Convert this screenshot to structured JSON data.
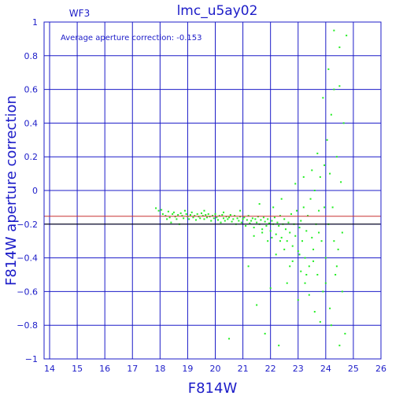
{
  "chart_data": {
    "type": "scatter",
    "title": "lmc_u5ay02",
    "chip_label": "WF3",
    "annotation": "Average aperture correction: -0.153",
    "xlabel": "F814W",
    "ylabel": "F814W aperture correction",
    "xlim": [
      13.8,
      26
    ],
    "ylim": [
      -1,
      1
    ],
    "xticks": [
      14,
      15,
      16,
      17,
      18,
      19,
      20,
      21,
      22,
      23,
      24,
      25,
      26
    ],
    "yticks": [
      -1,
      -0.8,
      -0.6,
      -0.4,
      -0.2,
      0,
      0.2,
      0.4,
      0.6,
      0.8,
      1
    ],
    "xtick_labels": [
      "14",
      "15",
      "16",
      "17",
      "18",
      "19",
      "20",
      "21",
      "22",
      "23",
      "24",
      "25",
      "26"
    ],
    "ytick_labels": [
      "−1",
      "−0.8",
      "−0.6",
      "−0.4",
      "−0.2",
      "0",
      "0.2",
      "0.4",
      "0.6",
      "0.8",
      "1"
    ],
    "average_line": -0.153,
    "reference_line": -0.2,
    "grid": true,
    "colors": {
      "grid": "#1c1cc8",
      "points": "#22ee22",
      "average_line": "#c83232",
      "reference_line": "#000000",
      "title": "#1c1cc8"
    },
    "points": [
      [
        17.85,
        -0.105
      ],
      [
        17.95,
        -0.12
      ],
      [
        18.05,
        -0.115
      ],
      [
        18.1,
        -0.14
      ],
      [
        18.2,
        -0.15
      ],
      [
        18.25,
        -0.17
      ],
      [
        18.3,
        -0.125
      ],
      [
        18.35,
        -0.16
      ],
      [
        18.4,
        -0.19
      ],
      [
        18.45,
        -0.14
      ],
      [
        18.5,
        -0.13
      ],
      [
        18.55,
        -0.155
      ],
      [
        18.6,
        -0.17
      ],
      [
        18.65,
        -0.145
      ],
      [
        18.7,
        -0.2
      ],
      [
        18.75,
        -0.135
      ],
      [
        18.8,
        -0.15
      ],
      [
        18.85,
        -0.165
      ],
      [
        18.9,
        -0.12
      ],
      [
        18.95,
        -0.14
      ],
      [
        19.0,
        -0.155
      ],
      [
        19.05,
        -0.17
      ],
      [
        19.1,
        -0.145
      ],
      [
        19.15,
        -0.13
      ],
      [
        19.2,
        -0.16
      ],
      [
        19.25,
        -0.15
      ],
      [
        19.3,
        -0.175
      ],
      [
        19.35,
        -0.14
      ],
      [
        19.4,
        -0.155
      ],
      [
        19.45,
        -0.165
      ],
      [
        19.5,
        -0.135
      ],
      [
        19.55,
        -0.15
      ],
      [
        19.6,
        -0.17
      ],
      [
        19.65,
        -0.145
      ],
      [
        19.7,
        -0.16
      ],
      [
        19.75,
        -0.14
      ],
      [
        19.8,
        -0.155
      ],
      [
        19.85,
        -0.18
      ],
      [
        19.9,
        -0.15
      ],
      [
        19.95,
        -0.165
      ],
      [
        20.0,
        -0.14
      ],
      [
        20.05,
        -0.16
      ],
      [
        20.1,
        -0.175
      ],
      [
        20.15,
        -0.15
      ],
      [
        20.2,
        -0.19
      ],
      [
        20.25,
        -0.145
      ],
      [
        20.3,
        -0.165
      ],
      [
        20.35,
        -0.18
      ],
      [
        20.4,
        -0.155
      ],
      [
        20.45,
        -0.17
      ],
      [
        20.5,
        -0.16
      ],
      [
        20.55,
        -0.145
      ],
      [
        20.6,
        -0.185
      ],
      [
        20.65,
        -0.17
      ],
      [
        20.7,
        -0.15
      ],
      [
        20.75,
        -0.2
      ],
      [
        20.8,
        -0.165
      ],
      [
        20.85,
        -0.18
      ],
      [
        20.9,
        -0.155
      ],
      [
        20.95,
        -0.19
      ],
      [
        21.0,
        -0.17
      ],
      [
        21.05,
        -0.16
      ],
      [
        21.1,
        -0.21
      ],
      [
        21.15,
        -0.175
      ],
      [
        21.2,
        -0.15
      ],
      [
        21.25,
        -0.195
      ],
      [
        21.3,
        -0.18
      ],
      [
        21.35,
        -0.165
      ],
      [
        21.4,
        -0.22
      ],
      [
        21.45,
        -0.17
      ],
      [
        21.5,
        -0.19
      ],
      [
        21.55,
        -0.155
      ],
      [
        21.6,
        -0.2
      ],
      [
        21.65,
        -0.175
      ],
      [
        21.7,
        -0.23
      ],
      [
        21.75,
        -0.16
      ],
      [
        21.8,
        -0.185
      ],
      [
        21.85,
        -0.21
      ],
      [
        21.9,
        -0.17
      ],
      [
        21.95,
        -0.195
      ],
      [
        22.0,
        -0.24
      ],
      [
        22.05,
        -0.18
      ],
      [
        22.1,
        -0.2
      ],
      [
        22.15,
        -0.16
      ],
      [
        22.2,
        -0.26
      ],
      [
        22.25,
        -0.19
      ],
      [
        22.3,
        -0.21
      ],
      [
        22.35,
        -0.15
      ],
      [
        22.4,
        -0.28
      ],
      [
        22.45,
        -0.2
      ],
      [
        22.5,
        -0.17
      ],
      [
        22.55,
        -0.23
      ],
      [
        22.6,
        -0.3
      ],
      [
        22.65,
        -0.19
      ],
      [
        22.7,
        -0.25
      ],
      [
        22.75,
        -0.14
      ],
      [
        22.8,
        -0.33
      ],
      [
        22.85,
        -0.2
      ],
      [
        22.9,
        -0.27
      ],
      [
        22.95,
        -0.12
      ],
      [
        23.0,
        -0.36
      ],
      [
        23.05,
        -0.22
      ],
      [
        23.1,
        -0.18
      ],
      [
        23.15,
        -0.3
      ],
      [
        23.2,
        -0.1
      ],
      [
        23.25,
        -0.4
      ],
      [
        23.3,
        -0.24
      ],
      [
        23.35,
        -0.15
      ],
      [
        23.4,
        -0.45
      ],
      [
        23.45,
        -0.05
      ],
      [
        23.5,
        -0.28
      ],
      [
        23.55,
        -0.35
      ],
      [
        23.6,
        0.0
      ],
      [
        23.65,
        -0.2
      ],
      [
        23.7,
        -0.5
      ],
      [
        23.75,
        -0.12
      ],
      [
        23.8,
        0.08
      ],
      [
        23.85,
        -0.3
      ],
      [
        23.9,
        -0.6
      ],
      [
        23.95,
        0.15
      ],
      [
        24.0,
        -0.4
      ],
      [
        24.05,
        0.3
      ],
      [
        24.1,
        -0.2
      ],
      [
        24.15,
        -0.7
      ],
      [
        24.2,
        0.45
      ],
      [
        24.25,
        -0.1
      ],
      [
        24.3,
        0.6
      ],
      [
        24.35,
        -0.5
      ],
      [
        24.4,
        0.2
      ],
      [
        24.45,
        -0.35
      ],
      [
        24.5,
        0.85
      ],
      [
        24.55,
        0.05
      ],
      [
        24.6,
        -0.6
      ],
      [
        24.65,
        0.4
      ],
      [
        24.7,
        -0.85
      ],
      [
        24.75,
        0.92
      ],
      [
        21.2,
        -0.45
      ],
      [
        21.8,
        -0.85
      ],
      [
        22.0,
        -0.58
      ],
      [
        22.3,
        -0.92
      ],
      [
        20.5,
        -0.88
      ],
      [
        21.5,
        -0.68
      ],
      [
        22.6,
        -0.55
      ],
      [
        23.0,
        -0.65
      ],
      [
        23.3,
        -0.5
      ],
      [
        23.6,
        -0.72
      ],
      [
        23.8,
        -0.78
      ],
      [
        24.2,
        -0.8
      ],
      [
        24.5,
        -0.92
      ],
      [
        23.9,
        0.55
      ],
      [
        24.1,
        0.72
      ],
      [
        24.3,
        0.95
      ],
      [
        24.5,
        0.62
      ],
      [
        23.7,
        0.22
      ],
      [
        23.5,
        0.12
      ],
      [
        23.2,
        0.08
      ],
      [
        22.9,
        0.04
      ],
      [
        22.4,
        -0.05
      ],
      [
        22.1,
        -0.1
      ],
      [
        21.6,
        -0.08
      ],
      [
        20.9,
        -0.12
      ],
      [
        20.3,
        -0.13
      ],
      [
        19.6,
        -0.12
      ],
      [
        22.5,
        -0.35
      ],
      [
        22.2,
        -0.38
      ],
      [
        21.9,
        -0.3
      ],
      [
        21.4,
        -0.27
      ],
      [
        22.8,
        -0.42
      ],
      [
        23.1,
        -0.48
      ],
      [
        23.4,
        -0.62
      ],
      [
        24.0,
        -0.55
      ],
      [
        24.4,
        -0.45
      ],
      [
        24.6,
        -0.25
      ],
      [
        24.3,
        -0.3
      ],
      [
        23.95,
        -0.1
      ],
      [
        24.15,
        0.1
      ],
      [
        23.75,
        -0.25
      ],
      [
        23.55,
        -0.42
      ],
      [
        23.25,
        -0.55
      ],
      [
        23.05,
        -0.38
      ],
      [
        22.7,
        -0.45
      ],
      [
        22.35,
        -0.3
      ],
      [
        22.05,
        -0.28
      ],
      [
        21.7,
        -0.25
      ]
    ]
  }
}
